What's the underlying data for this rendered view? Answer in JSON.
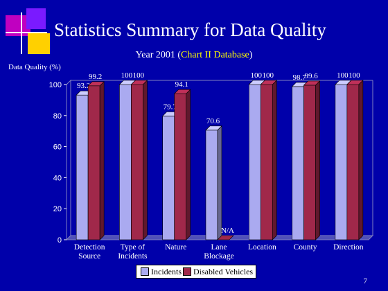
{
  "slide": {
    "title": "Statistics Summary for Data Quality",
    "subtitle_prefix": "Year 2001 (",
    "subtitle_highlight": "Chart II Database",
    "subtitle_suffix": ")",
    "page_number": "7"
  },
  "colors": {
    "background": "#0000aa",
    "incidents": "#aaaaf0",
    "disabled_vehicles": "#a0284a",
    "highlight_text": "#ffff00"
  },
  "chart_data": {
    "type": "bar",
    "ylabel": "Data Quality (%)",
    "ylim": [
      0,
      100
    ],
    "yticks": [
      0,
      20,
      40,
      60,
      80,
      100
    ],
    "categories": [
      [
        "Detection",
        "Source"
      ],
      [
        "Type of",
        "Incidents"
      ],
      [
        "Nature"
      ],
      [
        "Lane",
        "Blockage"
      ],
      [
        "Location"
      ],
      [
        "County"
      ],
      [
        "Direction"
      ]
    ],
    "series": [
      {
        "name": "Incidents",
        "values": [
          93.2,
          100,
          79.7,
          70.6,
          100,
          98.7,
          100
        ],
        "labels": [
          "93.2",
          "100",
          "79.7",
          "70.6",
          "100",
          "98.7",
          "100"
        ]
      },
      {
        "name": "Disabled Vehicles",
        "values": [
          99.2,
          100,
          94.1,
          null,
          100,
          99.6,
          100
        ],
        "labels": [
          "99.2",
          "100",
          "94.1",
          "N/A",
          "100",
          "99.6",
          "100"
        ]
      }
    ],
    "legend": "bottom",
    "grid": false
  }
}
